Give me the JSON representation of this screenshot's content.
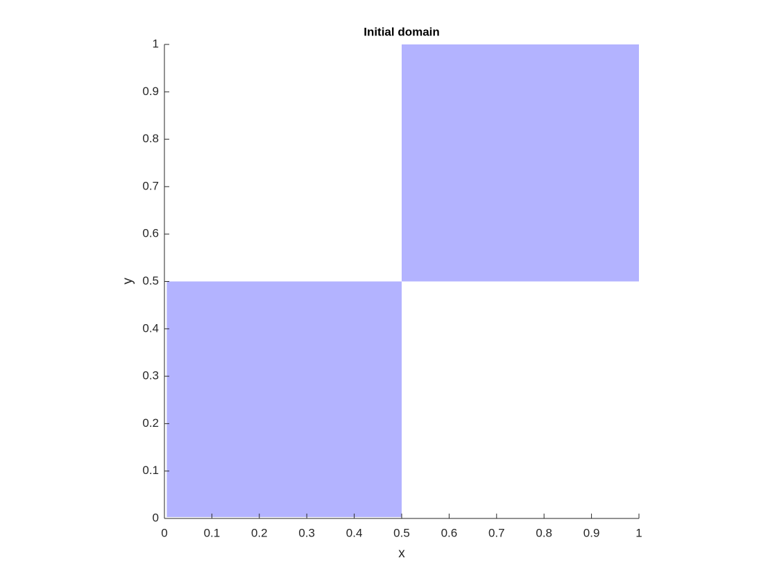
{
  "chart_data": {
    "type": "patch",
    "title": "Initial domain",
    "x_label": "x",
    "y_label": "y",
    "series": [
      {
        "color": "#b3b3ff",
        "x": [
          0.005,
          0.5
        ],
        "y": [
          0.003,
          0.5
        ]
      },
      {
        "color": "#b3b3ff",
        "x": [
          0.5,
          1
        ],
        "y": [
          0.5,
          1
        ]
      }
    ],
    "xlim": [
      0,
      1
    ],
    "ylim": [
      0,
      1
    ],
    "xticks": [
      0,
      0.1,
      0.2,
      0.3,
      0.4,
      0.5,
      0.6,
      0.7,
      0.8,
      0.9,
      1
    ],
    "yticks": [
      0,
      0.1,
      0.2,
      0.3,
      0.4,
      0.5,
      0.6,
      0.7,
      0.8,
      0.9,
      1
    ]
  }
}
